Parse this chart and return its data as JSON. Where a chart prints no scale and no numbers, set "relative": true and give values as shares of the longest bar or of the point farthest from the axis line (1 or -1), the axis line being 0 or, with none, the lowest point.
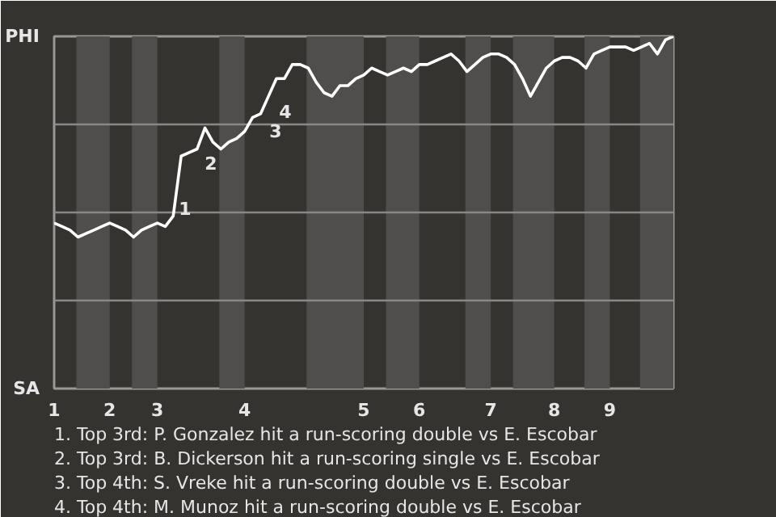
{
  "chart_data": {
    "type": "line",
    "relative": true,
    "categories": [
      "1",
      null,
      null,
      null,
      null,
      null,
      null,
      "2",
      null,
      null,
      null,
      null,
      null,
      "3",
      null,
      null,
      null,
      null,
      null,
      null,
      null,
      null,
      null,
      null,
      "4",
      null,
      null,
      null,
      null,
      null,
      null,
      null,
      null,
      null,
      null,
      null,
      null,
      null,
      null,
      "5",
      null,
      null,
      null,
      null,
      null,
      null,
      "6",
      null,
      null,
      null,
      null,
      null,
      null,
      null,
      null,
      "7",
      null,
      null,
      null,
      null,
      null,
      null,
      null,
      "8",
      null,
      null,
      null,
      null,
      null,
      null,
      "9",
      null,
      null,
      null,
      null,
      null,
      null,
      null,
      null
    ],
    "series": [
      {
        "color": "#ffffff",
        "values": [
          0.47,
          0.46,
          0.45,
          0.43,
          0.44,
          0.45,
          0.46,
          0.47,
          0.46,
          0.45,
          0.43,
          0.45,
          0.46,
          0.47,
          0.46,
          0.49,
          0.66,
          0.67,
          0.68,
          0.74,
          0.7,
          0.68,
          0.7,
          0.71,
          0.73,
          0.77,
          0.78,
          0.83,
          0.88,
          0.88,
          0.92,
          0.92,
          0.91,
          0.87,
          0.84,
          0.83,
          0.86,
          0.86,
          0.88,
          0.89,
          0.91,
          0.9,
          0.89,
          0.9,
          0.91,
          0.9,
          0.92,
          0.92,
          0.93,
          0.94,
          0.95,
          0.93,
          0.9,
          0.92,
          0.94,
          0.95,
          0.95,
          0.94,
          0.92,
          0.88,
          0.83,
          0.87,
          0.91,
          0.93,
          0.94,
          0.94,
          0.93,
          0.91,
          0.95,
          0.96,
          0.97,
          0.97,
          0.97,
          0.96,
          0.97,
          0.98,
          0.95,
          0.99,
          1.0
        ]
      }
    ],
    "marker": "none",
    "line_style": "solid",
    "ref_lines": [
      {
        "axis": "y",
        "value": 0.25,
        "color": "#8a8886"
      },
      {
        "axis": "y",
        "value": 0.5,
        "color": "#8a8886"
      },
      {
        "axis": "y",
        "value": 0.75,
        "color": "#8a8886"
      }
    ],
    "annotations": [
      "PHI",
      "SA",
      "1",
      "2",
      "3",
      "4",
      "1. Top 3rd: P. Gonzalez hit a run-scoring double vs E. Escobar",
      "2. Top 3rd: B. Dickerson hit a run-scoring single vs E. Escobar",
      "3. Top 4th: S. Vreke hit a run-scoring double vs E. Escobar",
      "4. Top 4th: M. Munoz hit a run-scoring double vs E. Escobar"
    ]
  }
}
